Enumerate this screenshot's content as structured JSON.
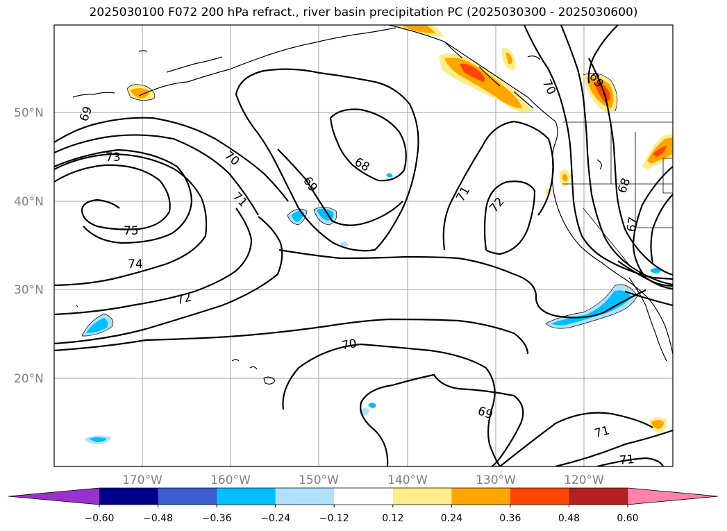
{
  "title": "2025030100 F072 200 hPa refract., river basin precipitation PC (2025030300 - 2025030600)",
  "lat_labels": [
    "50°N",
    "40°N",
    "30°N",
    "20°N"
  ],
  "lon_labels": [
    "170°W",
    "160°W",
    "150°W",
    "140°W",
    "130°W",
    "120°W"
  ],
  "contour_labels": [
    "69",
    "73",
    "70",
    "71",
    "75",
    "74",
    "72",
    "69",
    "68",
    "71",
    "72",
    "70",
    "69",
    "68",
    "67",
    "70",
    "69",
    "71",
    "71"
  ],
  "colorbar": {
    "ticks": [
      "−0.60",
      "−0.48",
      "−0.36",
      "−0.24",
      "−0.12",
      "0.12",
      "0.24",
      "0.36",
      "0.48",
      "0.60"
    ],
    "colors": [
      "#9932cc",
      "#00008b",
      "#3a5fcd",
      "#00bfff",
      "#b0e2ff",
      "#ffffff",
      "#ffec8b",
      "#ffa500",
      "#ff4500",
      "#b22222",
      "#ff82ab"
    ]
  },
  "colors": {
    "orange": "#ffa500",
    "yellow": "#ffec8b",
    "red": "#ff4500",
    "blue": "#00bfff",
    "lightblue": "#b0e2ff"
  }
}
